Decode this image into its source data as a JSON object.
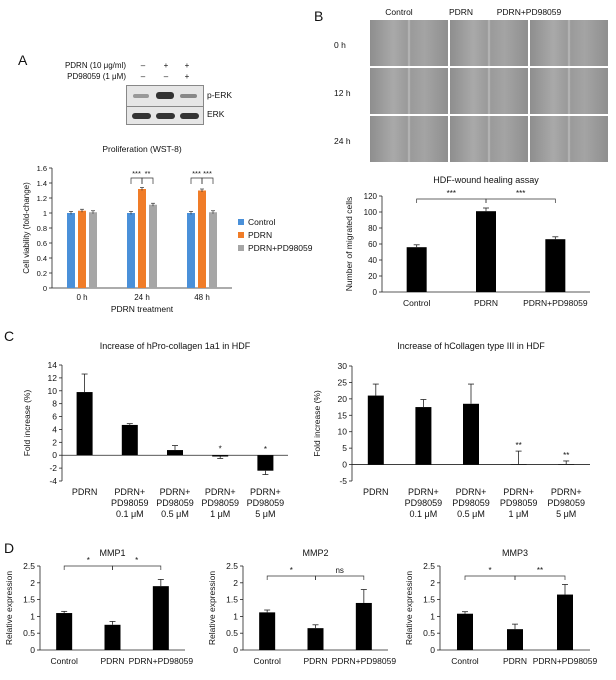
{
  "panels": {
    "a": "A",
    "b": "B",
    "c": "C",
    "d": "D"
  },
  "blot": {
    "treat1": "PDRN (10 μg/ml)",
    "treat2": "PD98059 (1 μM)",
    "signs1": [
      "–",
      "+",
      "+"
    ],
    "signs2": [
      "–",
      "–",
      "+"
    ],
    "band1": "p-ERK",
    "band2": "ERK"
  },
  "wound": {
    "cols": [
      "Control",
      "PDRN",
      "PDRN+PD98059"
    ],
    "rows": [
      "0 h",
      "12 h",
      "24 h"
    ]
  },
  "colors": {
    "control": "#4a90d9",
    "pdrn": "#f07c28",
    "pdrnpd": "#a6a6a6",
    "black": "#000000"
  },
  "chart_data": [
    {
      "id": "A",
      "type": "bar",
      "title": "Proliferation (WST-8)",
      "xlabel": "PDRN treatment",
      "ylabel": "Cell viability (fold-change)",
      "ylim": [
        0,
        1.6
      ],
      "yticks": [
        "0",
        "0.2",
        "0.4",
        "0.6",
        "0.8",
        "1",
        "1.2",
        "1.4",
        "1.6"
      ],
      "categories": [
        "0 h",
        "24 h",
        "48 h"
      ],
      "series": [
        {
          "name": "Control",
          "values": [
            1.0,
            1.0,
            1.0
          ],
          "err": [
            0.02,
            0.02,
            0.02
          ]
        },
        {
          "name": "PDRN",
          "values": [
            1.03,
            1.32,
            1.3
          ],
          "err": [
            0.02,
            0.02,
            0.02
          ]
        },
        {
          "name": "PDRN+PD98059",
          "values": [
            1.01,
            1.11,
            1.01
          ],
          "err": [
            0.02,
            0.02,
            0.02
          ]
        }
      ],
      "significance": [
        {
          "label": "***",
          "pair": [
            0,
            1
          ],
          "cat": 1
        },
        {
          "label": "**",
          "pair": [
            1,
            2
          ],
          "cat": 1
        },
        {
          "label": "***",
          "pair": [
            0,
            1
          ],
          "cat": 2
        },
        {
          "label": "***",
          "pair": [
            1,
            2
          ],
          "cat": 2
        }
      ],
      "legend": "right"
    },
    {
      "id": "B",
      "type": "bar",
      "title": "HDF-wound healing assay",
      "ylabel": "Number of migrated cells",
      "ylim": [
        0,
        120
      ],
      "yticks": [
        "0",
        "20",
        "40",
        "60",
        "80",
        "100",
        "120"
      ],
      "categories": [
        "Control",
        "PDRN",
        "PDRN+PD98059"
      ],
      "values": [
        56,
        101,
        66
      ],
      "err": [
        3,
        4,
        3
      ],
      "significance": [
        {
          "label": "***",
          "pair": [
            0,
            1
          ]
        },
        {
          "label": "***",
          "pair": [
            1,
            2
          ]
        }
      ]
    },
    {
      "id": "C1",
      "type": "bar",
      "title": "Increase of hPro-collagen 1a1 in HDF",
      "ylabel": "Fold increase (%)",
      "ylim": [
        -4,
        14
      ],
      "yticks": [
        "-4",
        "-2",
        "0",
        "2",
        "4",
        "6",
        "8",
        "10",
        "12",
        "14"
      ],
      "categories": [
        [
          "PDRN"
        ],
        [
          "PDRN+",
          "PD98059",
          "0.1 μM"
        ],
        [
          "PDRN+",
          "PD98059",
          "0.5 μM"
        ],
        [
          "PDRN+",
          "PD98059",
          "1 μM"
        ],
        [
          "PDRN+",
          "PD98059",
          "5 μM"
        ]
      ],
      "values": [
        9.8,
        4.7,
        0.8,
        -0.2,
        -2.4
      ],
      "err": [
        2.8,
        0.2,
        0.7,
        0.3,
        0.6
      ],
      "marks": [
        "",
        "",
        "",
        "*",
        "*"
      ]
    },
    {
      "id": "C2",
      "type": "bar",
      "title": "Increase of hCollagen type III in HDF",
      "ylabel": "Fold increase (%)",
      "ylim": [
        -5,
        30
      ],
      "yticks": [
        "-5",
        "0",
        "5",
        "10",
        "15",
        "20",
        "25",
        "30"
      ],
      "categories": [
        [
          "PDRN"
        ],
        [
          "PDRN+",
          "PD98059",
          "0.1 μM"
        ],
        [
          "PDRN+",
          "PD98059",
          "0.5 μM"
        ],
        [
          "PDRN+",
          "PD98059",
          "1 μM"
        ],
        [
          "PDRN+",
          "PD98059",
          "5 μM"
        ]
      ],
      "values": [
        21,
        17.5,
        18.5,
        0.1,
        0.1
      ],
      "err": [
        3.5,
        2.3,
        6,
        4,
        1
      ],
      "marks": [
        "",
        "",
        "",
        "**",
        "**"
      ]
    },
    {
      "id": "D1",
      "type": "bar",
      "title": "MMP1",
      "ylabel": "Relative expression",
      "ylim": [
        0,
        2.5
      ],
      "yticks": [
        "0",
        "0.5",
        "1",
        "1.5",
        "2",
        "2.5"
      ],
      "categories": [
        "Control",
        "PDRN",
        "PDRN+PD98059"
      ],
      "values": [
        1.1,
        0.75,
        1.9
      ],
      "err": [
        0.05,
        0.1,
        0.2
      ],
      "significance": [
        {
          "label": "*",
          "pair": [
            0,
            1
          ]
        },
        {
          "label": "*",
          "pair": [
            1,
            2
          ]
        }
      ]
    },
    {
      "id": "D2",
      "type": "bar",
      "title": "MMP2",
      "ylabel": "Relative expression",
      "ylim": [
        0,
        2.5
      ],
      "yticks": [
        "0",
        "0.5",
        "1",
        "1.5",
        "2",
        "2.5"
      ],
      "categories": [
        "Control",
        "PDRN",
        "PDRN+PD98059"
      ],
      "values": [
        1.12,
        0.65,
        1.4
      ],
      "err": [
        0.07,
        0.1,
        0.4
      ],
      "significance": [
        {
          "label": "*",
          "pair": [
            0,
            1
          ]
        },
        {
          "label": "ns",
          "pair": [
            1,
            2
          ]
        }
      ]
    },
    {
      "id": "D3",
      "type": "bar",
      "title": "MMP3",
      "ylabel": "Relative expression",
      "ylim": [
        0,
        2.5
      ],
      "yticks": [
        "0",
        "0.5",
        "1",
        "1.5",
        "2",
        "2.5"
      ],
      "categories": [
        "Control",
        "PDRN",
        "PDRN+PD98059"
      ],
      "values": [
        1.08,
        0.62,
        1.65
      ],
      "err": [
        0.06,
        0.15,
        0.3
      ],
      "significance": [
        {
          "label": "*",
          "pair": [
            0,
            1
          ]
        },
        {
          "label": "**",
          "pair": [
            1,
            2
          ]
        }
      ]
    }
  ]
}
